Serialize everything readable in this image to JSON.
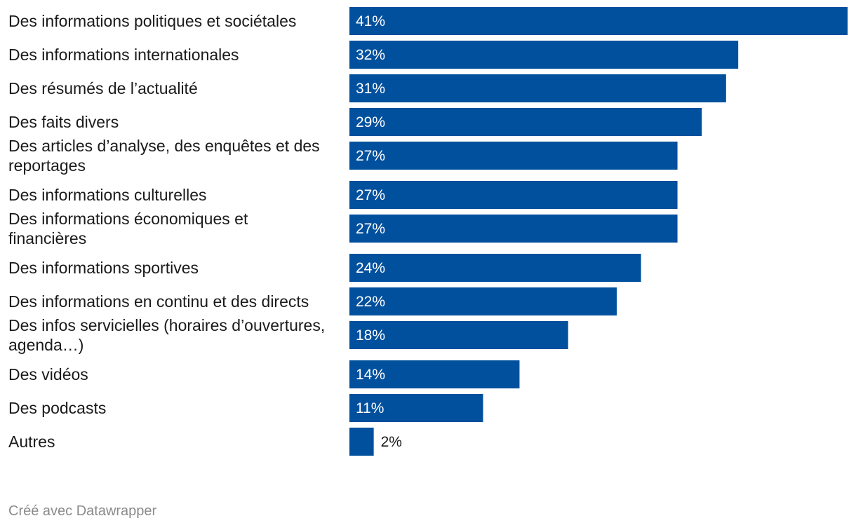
{
  "chart_data": {
    "type": "bar",
    "orientation": "horizontal",
    "categories": [
      "Des informations politiques et sociétales",
      "Des informations internationales",
      "Des résumés de l’actualité",
      "Des faits divers",
      "Des articles d’analyse, des enquêtes et des reportages",
      "Des informations culturelles",
      "Des informations économiques et financières",
      "Des informations sportives",
      "Des informations en continu et des directs",
      "Des infos servicielles (horaires d’ouvertures, agenda…)",
      "Des vidéos",
      "Des podcasts",
      "Autres"
    ],
    "category_lines": [
      [
        "Des informations politiques et sociétales"
      ],
      [
        "Des informations internationales"
      ],
      [
        "Des résumés de l’actualité"
      ],
      [
        "Des faits divers"
      ],
      [
        "Des articles d’analyse, des enquêtes et des",
        "reportages"
      ],
      [
        "Des informations culturelles"
      ],
      [
        "Des informations économiques et",
        "financières"
      ],
      [
        "Des informations sportives"
      ],
      [
        "Des informations en continu et des directs"
      ],
      [
        "Des infos servicielles (horaires d’ouvertures,",
        "agenda…)"
      ],
      [
        "Des vidéos"
      ],
      [
        "Des podcasts"
      ],
      [
        "Autres"
      ]
    ],
    "values": [
      41,
      32,
      31,
      29,
      27,
      27,
      27,
      24,
      22,
      18,
      14,
      11,
      2
    ],
    "value_labels": [
      "41%",
      "32%",
      "31%",
      "29%",
      "27%",
      "27%",
      "27%",
      "24%",
      "22%",
      "18%",
      "14%",
      "11%",
      "2%"
    ],
    "unit": "%",
    "title": "",
    "xlabel": "",
    "ylabel": "",
    "xlim": [
      0,
      41
    ],
    "grid": false,
    "legend": "none",
    "colors": {
      "bar": "#00509d",
      "label_inside": "#ffffff",
      "label_outside": "#1a1a1a"
    }
  },
  "footer": {
    "credit": "Créé avec Datawrapper"
  }
}
